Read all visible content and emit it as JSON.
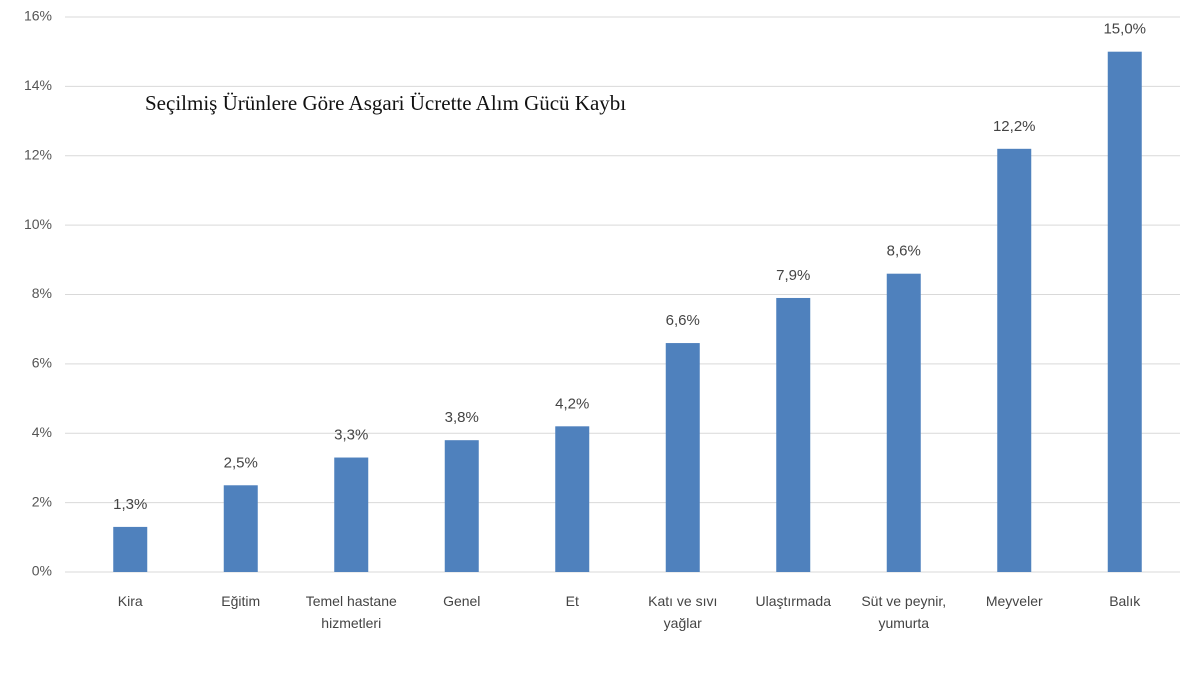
{
  "chart_data": {
    "type": "bar",
    "title": "Seçilmiş Ürünlere Göre Asgari Ücrette Alım Gücü Kaybı",
    "categories": [
      "Kira",
      "Eğitim",
      "Temel hastane hizmetleri",
      "Genel",
      "Et",
      "Katı ve sıvı yağlar",
      "Ulaştırmada",
      "Süt ve peynir, yumurta",
      "Meyveler",
      "Balık"
    ],
    "values": [
      1.3,
      2.5,
      3.3,
      3.8,
      4.2,
      6.6,
      7.9,
      8.6,
      12.2,
      15.0
    ],
    "value_labels": [
      "1,3%",
      "2,5%",
      "3,3%",
      "3,8%",
      "4,2%",
      "6,6%",
      "7,9%",
      "8,6%",
      "12,2%",
      "15,0%"
    ],
    "color": "#4f81bd",
    "ylim": [
      0,
      16
    ],
    "yticks": [
      {
        "value": 0,
        "label": "0%"
      },
      {
        "value": 2,
        "label": "2%"
      },
      {
        "value": 4,
        "label": "4%"
      },
      {
        "value": 6,
        "label": "6%"
      },
      {
        "value": 8,
        "label": "8%"
      },
      {
        "value": 10,
        "label": "10%"
      },
      {
        "value": 12,
        "label": "12%"
      },
      {
        "value": 14,
        "label": "14%"
      },
      {
        "value": 16,
        "label": "16%"
      }
    ],
    "grid": true
  }
}
